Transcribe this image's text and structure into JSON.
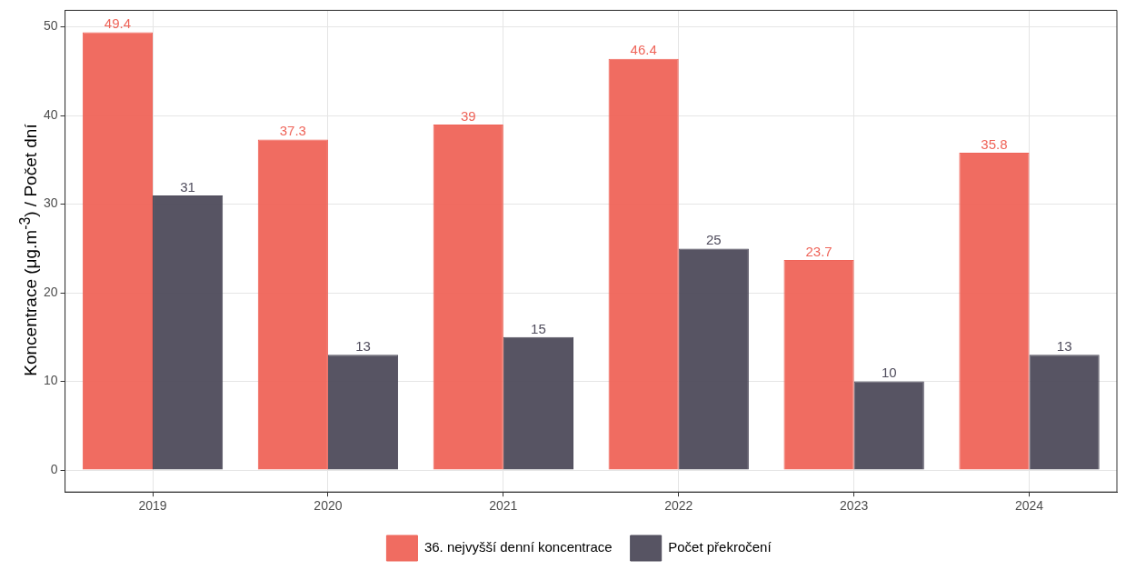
{
  "chart_data": {
    "type": "bar",
    "ylabel": "Koncentrace (μg.m$^{-3}$) / Počet dní",
    "categories": [
      "2019",
      "2020",
      "2021",
      "2022",
      "2023",
      "2024"
    ],
    "series": [
      {
        "name": "36. nejvyšší denní koncentrace",
        "color": "#ef6459",
        "values": [
          49.4,
          37.3,
          39,
          46.4,
          23.7,
          35.8
        ]
      },
      {
        "name": "Počet překročení",
        "color": "#4e4b5b",
        "values": [
          31,
          13,
          15,
          25,
          10,
          13
        ]
      }
    ],
    "ylim": [
      -2.47,
      51.87
    ],
    "yticks": [
      0,
      10,
      20,
      30,
      40,
      50
    ],
    "grid": true,
    "legend": "bottom",
    "data_labels": true
  }
}
